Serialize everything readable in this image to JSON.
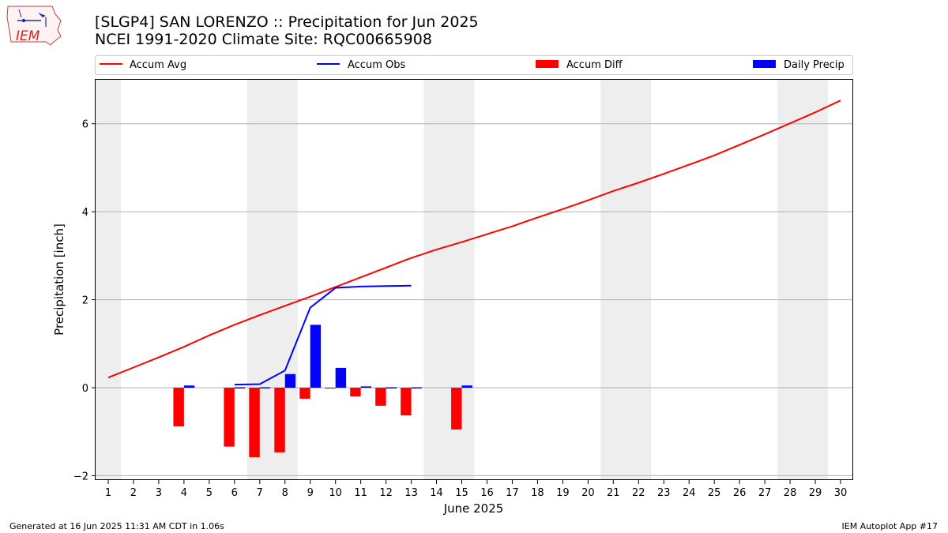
{
  "header": {
    "title_line1": "[SLGP4] SAN LORENZO :: Precipitation for Jun 2025",
    "title_line2": "NCEI 1991-2020 Climate Site: RQC00665908",
    "logo_text": "IEM"
  },
  "footer": {
    "generated": "Generated at 16 Jun 2025 11:31 AM CDT in 1.06s",
    "app": "IEM Autoplot App #17"
  },
  "colors": {
    "accum_avg": "#ff0000",
    "accum_obs": "#0000ff",
    "accum_diff": "#ff0000",
    "daily_precip": "#0000ff",
    "weekend_shade": "#eeeeee",
    "grid": "#b0b0b0"
  },
  "chart_data": {
    "type": "bar",
    "xlabel": "June 2025",
    "ylabel": "Precipitation [inch]",
    "xlim": [
      0.5,
      30.5
    ],
    "ylim": [
      -2.1,
      7.0
    ],
    "yticks": [
      -2,
      0,
      2,
      4,
      6
    ],
    "grid": "horizontal",
    "legend": {
      "placement": "top",
      "entries": [
        {
          "label": "Accum Avg",
          "kind": "line",
          "color": "#ff0000"
        },
        {
          "label": "Accum Obs",
          "kind": "line",
          "color": "#0000ff"
        },
        {
          "label": "Accum Diff",
          "kind": "bar",
          "color": "#ff0000"
        },
        {
          "label": "Daily Precip",
          "kind": "bar",
          "color": "#0000ff"
        }
      ]
    },
    "days": [
      1,
      2,
      3,
      4,
      5,
      6,
      7,
      8,
      9,
      10,
      11,
      12,
      13,
      14,
      15,
      16,
      17,
      18,
      19,
      20,
      21,
      22,
      23,
      24,
      25,
      26,
      27,
      28,
      29,
      30
    ],
    "weekend_spans": [
      [
        0.5,
        1.5
      ],
      [
        6.5,
        8.5
      ],
      [
        13.5,
        15.5
      ],
      [
        20.5,
        22.5
      ],
      [
        27.5,
        29.5
      ]
    ],
    "accum_avg": [
      0.23,
      0.46,
      0.69,
      0.93,
      1.19,
      1.43,
      1.65,
      1.86,
      2.07,
      2.29,
      2.51,
      2.73,
      2.95,
      3.14,
      3.31,
      3.49,
      3.67,
      3.87,
      4.06,
      4.26,
      4.47,
      4.66,
      4.86,
      5.07,
      5.28,
      5.52,
      5.76,
      6.01,
      6.26,
      6.53
    ],
    "accum_obs": {
      "days": [
        6,
        7,
        8,
        9,
        10,
        11,
        12,
        13
      ],
      "values": [
        0.07,
        0.08,
        0.39,
        1.82,
        2.27,
        2.3,
        2.31,
        2.32
      ]
    },
    "accum_diff": {
      "days": [
        4,
        6,
        7,
        8,
        9,
        10,
        11,
        12,
        13,
        15
      ],
      "values": [
        -0.88,
        -1.34,
        -1.58,
        -1.47,
        -0.25,
        -0.02,
        -0.2,
        -0.41,
        -0.63,
        -0.95
      ]
    },
    "daily_precip": {
      "days": [
        4,
        6,
        7,
        8,
        9,
        10,
        11,
        12,
        13,
        15
      ],
      "values": [
        0.05,
        0.01,
        0.01,
        0.31,
        1.43,
        0.45,
        0.03,
        0.01,
        0.01,
        0.05
      ]
    }
  }
}
